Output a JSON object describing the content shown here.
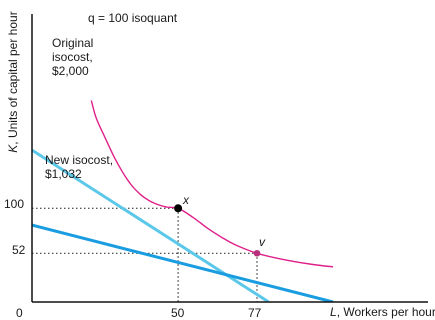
{
  "chart_data": {
    "type": "line",
    "xlabel": {
      "var": "L",
      "text": ", Workers per hour"
    },
    "ylabel": {
      "var": "K",
      "text": ", Units of capital per hour"
    },
    "xlim": [
      0,
      103
    ],
    "ylim": [
      0,
      208
    ],
    "x_ticks": [
      {
        "value": 0,
        "label": "0"
      },
      {
        "value": 50,
        "label": "50"
      },
      {
        "value": 77,
        "label": "77"
      }
    ],
    "y_ticks": [
      {
        "value": 100,
        "label": "100"
      },
      {
        "value": 52,
        "label": "52"
      }
    ],
    "grid": false,
    "series": [
      {
        "name": "Original isocost, $2,000",
        "kind": "isocost",
        "color": "#5bc8ea",
        "x": [
          0,
          81
        ],
        "y": [
          162,
          0
        ]
      },
      {
        "name": "New isocost, $1,032",
        "kind": "isocost",
        "color": "#1a9de0",
        "x": [
          0,
          103
        ],
        "y": [
          82,
          0
        ]
      },
      {
        "name": "q = 100 isoquant",
        "kind": "isoquant",
        "color": "#e0208a",
        "x": [
          20.3,
          22,
          25,
          28,
          31,
          34,
          37,
          40,
          43,
          46,
          50,
          55,
          60,
          65,
          70,
          77,
          85,
          95,
          103
        ],
        "y": [
          215,
          196,
          175.4,
          155.4,
          138.5,
          124.8,
          115,
          108.3,
          104,
          101.3,
          100,
          90.5,
          78.8,
          68.8,
          60.4,
          52,
          46,
          40.5,
          37.5
        ]
      }
    ],
    "points": [
      {
        "label": "x",
        "x": 50,
        "y": 100,
        "color": "#000000"
      },
      {
        "label": "v",
        "x": 77,
        "y": 52,
        "color": "#b8307d"
      }
    ],
    "guides": [
      {
        "x": 50,
        "y": 100
      },
      {
        "x": 77,
        "y": 52
      }
    ],
    "annotations": [
      {
        "lines": [
          "q = 100 isoquant"
        ],
        "target": "isoquant"
      },
      {
        "lines": [
          "Original",
          "isocost,",
          "$2,000"
        ],
        "target": "original"
      },
      {
        "lines": [
          "New isocost,",
          "$1,032"
        ],
        "target": "new"
      }
    ]
  }
}
